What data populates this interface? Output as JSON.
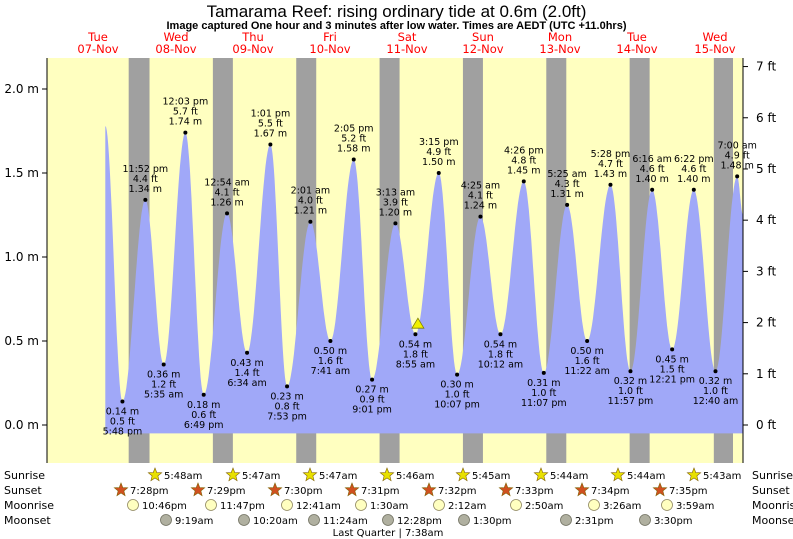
{
  "title": "Tamarama Reef: rising  ordinary tide at 0.6m (2.0ft)",
  "subtitle": "Image captured One hour and 3 minutes after low water. Times are AEDT (UTC +11.0hrs)",
  "colors": {
    "day_bg": "#ffffc0",
    "night_bg": "#a0a0a0",
    "tide_fill": "#a0a8f8",
    "day_label": "#ff0000",
    "sun_star": "#e8e000",
    "sunset_star": "#d05020",
    "moonrise": "#ffffc0",
    "moonset": "#b0b0a0"
  },
  "days": [
    {
      "day": "Tue",
      "date": "07-Nov"
    },
    {
      "day": "Wed",
      "date": "08-Nov"
    },
    {
      "day": "Thu",
      "date": "09-Nov"
    },
    {
      "day": "Fri",
      "date": "10-Nov"
    },
    {
      "day": "Sat",
      "date": "11-Nov"
    },
    {
      "day": "Sun",
      "date": "12-Nov"
    },
    {
      "day": "Mon",
      "date": "13-Nov"
    },
    {
      "day": "Tue",
      "date": "14-Nov"
    },
    {
      "day": "Wed",
      "date": "15-Nov"
    }
  ],
  "chart_data": {
    "type": "area",
    "title": "Tamarama Reef: rising  ordinary tide at 0.6m (2.0ft)",
    "y_left_ticks": [
      "0.0 m",
      "0.5 m",
      "1.0 m",
      "1.5 m",
      "2.0 m"
    ],
    "y_right_ticks": [
      "0 ft",
      "1 ft",
      "2 ft",
      "3 ft",
      "4 ft",
      "5 ft",
      "6 ft",
      "7 ft"
    ],
    "ylim_m": [
      -0.2,
      2.15
    ],
    "x_range_days": [
      0,
      8.35
    ],
    "tides": [
      {
        "t": 0.7,
        "h": 1.78,
        "label": [
          "",
          "",
          ""
        ]
      },
      {
        "t": 0.905,
        "h": 0.14,
        "label": [
          "0.14 m",
          "0.5 ft",
          "5:48 pm"
        ],
        "pos": "below"
      },
      {
        "t": 1.18,
        "h": 1.34,
        "label": [
          "11:52 pm",
          "4.4 ft",
          "1.34 m"
        ],
        "pos": "above"
      },
      {
        "t": 1.4,
        "h": 0.36,
        "label": [
          "0.36 m",
          "1.2 ft",
          "5:35 am"
        ],
        "pos": "below"
      },
      {
        "t": 1.66,
        "h": 1.74,
        "label": [
          "12:03 pm",
          "5.7 ft",
          "1.74 m"
        ],
        "pos": "above"
      },
      {
        "t": 1.88,
        "h": 0.18,
        "label": [
          "0.18 m",
          "0.6 ft",
          "6:49 pm"
        ],
        "pos": "below"
      },
      {
        "t": 2.16,
        "h": 1.26,
        "label": [
          "12:54 am",
          "4.1 ft",
          "1.26 m"
        ],
        "pos": "above"
      },
      {
        "t": 2.4,
        "h": 0.43,
        "label": [
          "0.43 m",
          "1.4 ft",
          "6:34 am"
        ],
        "pos": "below"
      },
      {
        "t": 2.68,
        "h": 1.67,
        "label": [
          "1:01 pm",
          "5.5 ft",
          "1.67 m"
        ],
        "pos": "above"
      },
      {
        "t": 2.88,
        "h": 0.23,
        "label": [
          "0.23 m",
          "0.8 ft",
          "7:53 pm"
        ],
        "pos": "below"
      },
      {
        "t": 3.16,
        "h": 1.21,
        "label": [
          "2:01 am",
          "4.0 ft",
          "1.21 m"
        ],
        "pos": "above"
      },
      {
        "t": 3.4,
        "h": 0.5,
        "label": [
          "0.50 m",
          "1.6 ft",
          "7:41 am"
        ],
        "pos": "below"
      },
      {
        "t": 3.68,
        "h": 1.58,
        "label": [
          "2:05 pm",
          "5.2 ft",
          "1.58 m"
        ],
        "pos": "above"
      },
      {
        "t": 3.9,
        "h": 0.27,
        "label": [
          "0.27 m",
          "0.9 ft",
          "9:01 pm"
        ],
        "pos": "below"
      },
      {
        "t": 4.18,
        "h": 1.2,
        "label": [
          "3:13 am",
          "3.9 ft",
          "1.20 m"
        ],
        "pos": "above"
      },
      {
        "t": 4.42,
        "h": 0.54,
        "label": [
          "0.54 m",
          "1.8 ft",
          "8:55 am"
        ],
        "pos": "below"
      },
      {
        "t": 4.7,
        "h": 1.5,
        "label": [
          "3:15 pm",
          "4.9 ft",
          "1.50 m"
        ],
        "pos": "above"
      },
      {
        "t": 4.92,
        "h": 0.3,
        "label": [
          "0.30 m",
          "1.0 ft",
          "10:07 pm"
        ],
        "pos": "below"
      },
      {
        "t": 5.2,
        "h": 1.24,
        "label": [
          "4:25 am",
          "4.1 ft",
          "1.24 m"
        ],
        "pos": "above"
      },
      {
        "t": 5.44,
        "h": 0.54,
        "label": [
          "0.54 m",
          "1.8 ft",
          "10:12 am"
        ],
        "pos": "below"
      },
      {
        "t": 5.72,
        "h": 1.45,
        "label": [
          "4:26 pm",
          "4.8 ft",
          "1.45 m"
        ],
        "pos": "above"
      },
      {
        "t": 5.96,
        "h": 0.31,
        "label": [
          "0.31 m",
          "1.0 ft",
          "11:07 pm"
        ],
        "pos": "below"
      },
      {
        "t": 6.24,
        "h": 1.31,
        "label": [
          "5:25 am",
          "4.3 ft",
          "1.31 m"
        ],
        "pos": "above"
      },
      {
        "t": 6.48,
        "h": 0.5,
        "label": [
          "0.50 m",
          "1.6 ft",
          "11:22 am"
        ],
        "pos": "below"
      },
      {
        "t": 6.76,
        "h": 1.43,
        "label": [
          "5:28 pm",
          "4.7 ft",
          "1.43 m"
        ],
        "pos": "above"
      },
      {
        "t": 7.0,
        "h": 0.32,
        "label": [
          "0.32 m",
          "1.0 ft",
          "11:57 pm"
        ],
        "pos": "below"
      },
      {
        "t": 7.26,
        "h": 1.4,
        "label": [
          "6:16 am",
          "4.6 ft",
          "1.40 m"
        ],
        "pos": "above"
      },
      {
        "t": 7.5,
        "h": 0.45,
        "label": [
          "0.45 m",
          "1.5 ft",
          "12:21 pm"
        ],
        "pos": "below"
      },
      {
        "t": 7.76,
        "h": 1.4,
        "label": [
          "6:22 pm",
          "4.6 ft",
          "1.40 m"
        ],
        "pos": "above"
      },
      {
        "t": 8.02,
        "h": 0.32,
        "label": [
          "0.32 m",
          "1.0 ft",
          "12:40 am"
        ],
        "pos": "below"
      },
      {
        "t": 8.28,
        "h": 1.48,
        "label": [
          "7:00 am",
          "4.9 ft",
          "1.48 m"
        ],
        "pos": "above"
      },
      {
        "t": 8.35,
        "h": 1.25,
        "label": [
          "",
          "",
          ""
        ]
      }
    ],
    "current_marker": {
      "t": 4.45,
      "h": 0.6
    }
  },
  "night_bands": [
    [
      0.98,
      1.23
    ],
    [
      1.99,
      2.23
    ],
    [
      2.99,
      3.23
    ],
    [
      3.99,
      4.23
    ],
    [
      4.99,
      5.23
    ],
    [
      5.99,
      6.23
    ],
    [
      6.99,
      7.23
    ],
    [
      8.0,
      8.23
    ]
  ],
  "astro": {
    "row_labels": [
      "Sunrise",
      "Sunset",
      "Moonrise",
      "Moonset"
    ],
    "sunrise": [
      "5:48am",
      "5:47am",
      "5:47am",
      "5:46am",
      "5:45am",
      "5:44am",
      "5:44am",
      "5:43am"
    ],
    "sunset": [
      "7:28pm",
      "7:29pm",
      "7:30pm",
      "7:31pm",
      "7:32pm",
      "7:33pm",
      "7:34pm",
      "7:35pm"
    ],
    "moonrise": [
      "10:46pm",
      "11:47pm",
      "12:41am",
      "1:30am",
      "2:12am",
      "2:50am",
      "3:26am",
      "3:59am"
    ],
    "moonset": [
      "9:19am",
      "10:20am",
      "11:24am",
      "12:28pm",
      "1:30pm",
      "2:31pm",
      "3:30pm"
    ],
    "phase": "Last Quarter | 7:38am"
  }
}
